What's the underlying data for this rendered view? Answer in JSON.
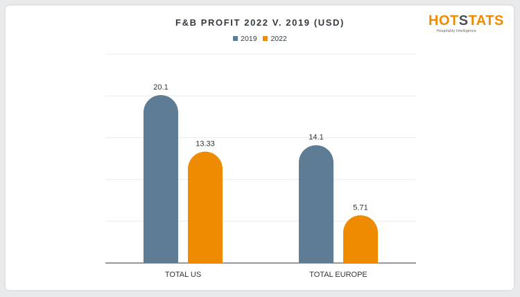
{
  "logo": {
    "text_left": "HOT",
    "text_highlight": "S",
    "text_right": "TATS",
    "tagline": "Hospitality Intelligence"
  },
  "chart_data": {
    "type": "bar",
    "title": "F&B PROFIT 2022 V. 2019 (USD)",
    "xlabel": "",
    "ylabel": "",
    "categories": [
      "TOTAL US",
      "TOTAL EUROPE"
    ],
    "series": [
      {
        "name": "2019",
        "values": [
          20.1,
          14.1
        ],
        "color": "#5e7d94"
      },
      {
        "name": "2022",
        "values": [
          13.33,
          5.71
        ],
        "color": "#ee8b00"
      }
    ],
    "ylim": [
      0,
      25
    ],
    "grid": true,
    "legend": "top-center",
    "bar_style": "rounded-top"
  }
}
